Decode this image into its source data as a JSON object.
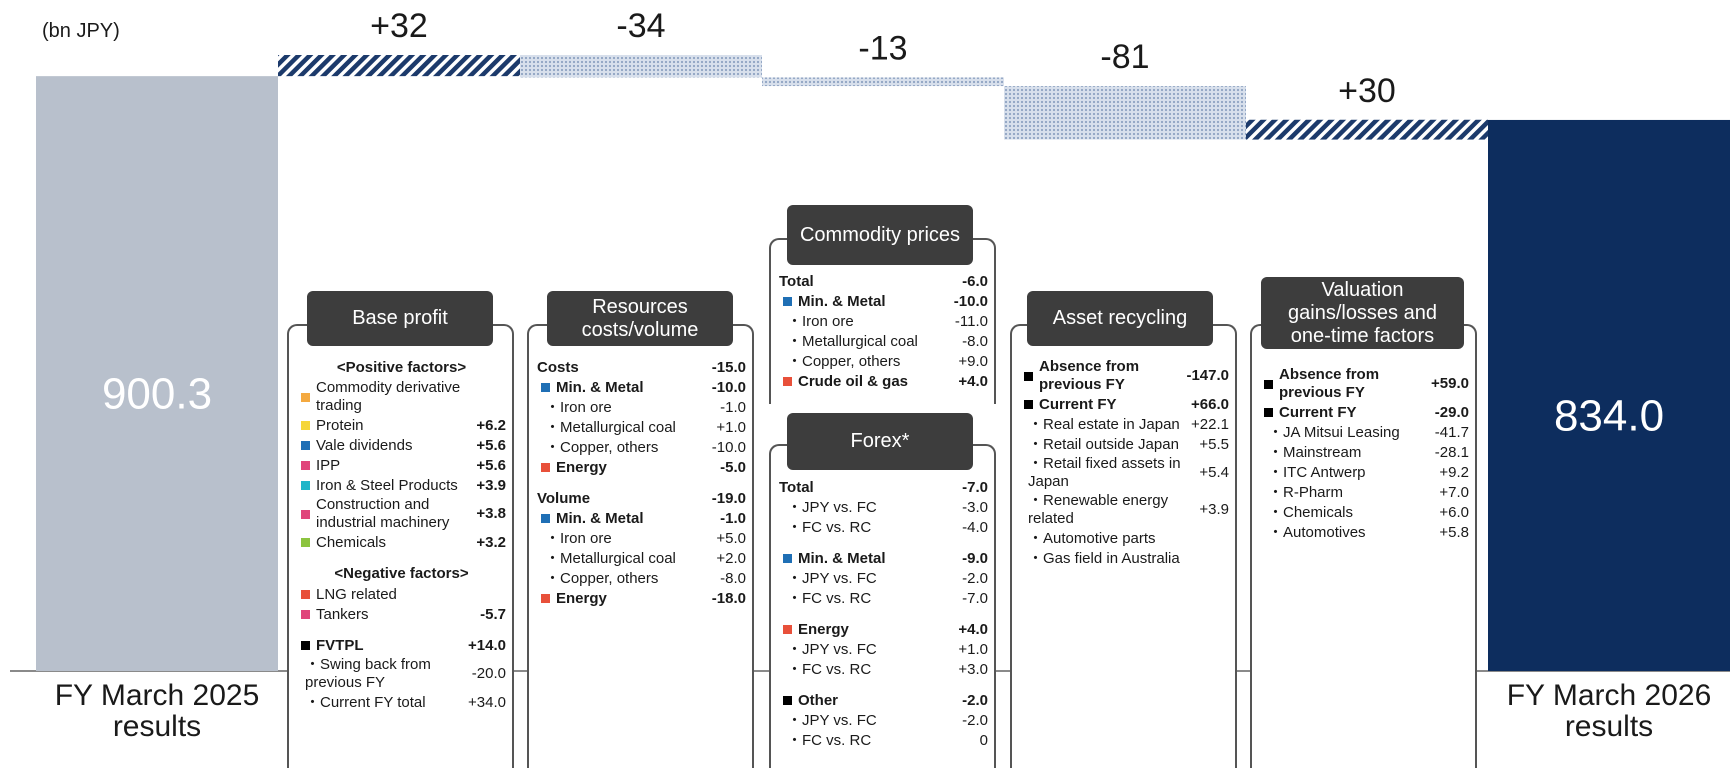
{
  "chart_data": {
    "type": "waterfall",
    "unit": "(bn JPY)",
    "categories": [
      "FY March 2025 results",
      null,
      null,
      null,
      null,
      null,
      "FY March 2026 results"
    ],
    "values": [
      900.3,
      32,
      -34,
      -13,
      -81,
      30,
      834.0
    ],
    "value_labels": [
      "900.3",
      "+32",
      "-34",
      "-13",
      "-81",
      "+30",
      "834.0"
    ],
    "measures": [
      "absolute",
      "relative",
      "relative",
      "relative",
      "relative",
      "relative",
      "absolute"
    ],
    "colors": [
      "#b8c0cc",
      "#1c3a6b",
      "#8fa3c2",
      "#8fa3c2",
      "#8fa3c2",
      "#1c3a6b",
      "#0d2d5e"
    ],
    "fills": [
      "solid",
      "stripes",
      "dots",
      "dots",
      "dots",
      "stripes",
      "solid"
    ]
  },
  "panels": [
    {
      "title": "Base profit",
      "groups": [
        {
          "title": "<Positive factors>",
          "rows": [
            {
              "label": "Commodity derivative trading",
              "bullet": "#f4a940"
            },
            {
              "label": "Protein",
              "value": "+6.2",
              "bullet": "#f5d63a"
            },
            {
              "label": "Vale dividends",
              "value": "+5.6",
              "bullet": "#1f6fb5"
            },
            {
              "label": "IPP",
              "value": "+5.6",
              "bullet": "#e0457b"
            },
            {
              "label": "Iron & Steel Products",
              "value": "+3.9",
              "bullet": "#1fb5c8"
            },
            {
              "label": "Construction and industrial machinery",
              "value": "+3.8",
              "bullet": "#e0457b"
            },
            {
              "label": "Chemicals",
              "value": "+3.2",
              "bullet": "#8cc43f"
            }
          ]
        },
        {
          "title": "<Negative factors>",
          "rows": [
            {
              "label": "LNG related",
              "bullet": "#e8503a"
            },
            {
              "label": "Tankers",
              "value": "-5.7",
              "bullet": "#e0457b"
            }
          ]
        },
        {
          "rows": [
            {
              "label": "FVTPL",
              "value": "+14.0",
              "bullet": "#000000",
              "bold": true
            },
            {
              "label": "・Swing back from previous FY",
              "value": "-20.0"
            },
            {
              "label": "・Current FY total",
              "value": "+34.0"
            }
          ]
        }
      ]
    },
    {
      "title": "Resources costs/volume",
      "groups": [
        {
          "rows": [
            {
              "label": "Costs",
              "value": "-15.0",
              "bold": true
            },
            {
              "label": "Min. & Metal",
              "value": "-10.0",
              "bullet": "#1f6fb5",
              "bold": true
            },
            {
              "label": "・Iron ore",
              "value": "-1.0"
            },
            {
              "label": "・Metallurgical coal",
              "value": "+1.0"
            },
            {
              "label": "・Copper, others",
              "value": "-10.0"
            },
            {
              "label": "Energy",
              "value": "-5.0",
              "bullet": "#e8503a",
              "bold": true
            }
          ]
        },
        {
          "rows": [
            {
              "label": "Volume",
              "value": "-19.0",
              "bold": true
            },
            {
              "label": "Min. & Metal",
              "value": "-1.0",
              "bullet": "#1f6fb5",
              "bold": true
            },
            {
              "label": "・Iron ore",
              "value": "+5.0"
            },
            {
              "label": "・Metallurgical coal",
              "value": "+2.0"
            },
            {
              "label": "・Copper, others",
              "value": "-8.0"
            },
            {
              "label": "Energy",
              "value": "-18.0",
              "bullet": "#e8503a",
              "bold": true
            }
          ]
        }
      ]
    },
    {
      "title": "Commodity prices",
      "groups": [
        {
          "rows": [
            {
              "label": "Total",
              "value": "-6.0",
              "bold": true
            },
            {
              "label": "Min. & Metal",
              "value": "-10.0",
              "bullet": "#1f6fb5",
              "bold": true
            },
            {
              "label": "・Iron ore",
              "value": "-11.0"
            },
            {
              "label": "・Metallurgical coal",
              "value": "-8.0"
            },
            {
              "label": "・Copper, others",
              "value": "+9.0"
            },
            {
              "label": "Crude oil & gas",
              "value": "+4.0",
              "bullet": "#e8503a",
              "bold": true
            }
          ]
        }
      ]
    },
    {
      "title": "Forex*",
      "groups": [
        {
          "rows": [
            {
              "label": "Total",
              "value": "-7.0",
              "bold": true
            },
            {
              "label": "・JPY vs. FC",
              "value": "-3.0"
            },
            {
              "label": "・FC vs. RC",
              "value": "-4.0"
            }
          ]
        },
        {
          "rows": [
            {
              "label": "Min. & Metal",
              "value": "-9.0",
              "bullet": "#1f6fb5",
              "bold": true
            },
            {
              "label": "・JPY vs. FC",
              "value": "-2.0"
            },
            {
              "label": "・FC vs. RC",
              "value": "-7.0"
            }
          ]
        },
        {
          "rows": [
            {
              "label": "Energy",
              "value": "+4.0",
              "bullet": "#e8503a",
              "bold": true
            },
            {
              "label": "・JPY vs. FC",
              "value": "+1.0"
            },
            {
              "label": "・FC vs. RC",
              "value": "+3.0"
            }
          ]
        },
        {
          "rows": [
            {
              "label": "Other",
              "value": "-2.0",
              "bullet": "#000000",
              "bold": true
            },
            {
              "label": "・JPY vs. FC",
              "value": "-2.0"
            },
            {
              "label": "・FC vs. RC",
              "value": "0"
            }
          ]
        }
      ]
    },
    {
      "title": "Asset recycling",
      "groups": [
        {
          "rows": [
            {
              "label": "Absence from previous FY",
              "value": "-147.0",
              "bullet": "#000000",
              "bold": true
            },
            {
              "label": "Current FY",
              "value": "+66.0",
              "bullet": "#000000",
              "bold": true
            },
            {
              "label": "・Real estate in Japan",
              "value": "+22.1"
            },
            {
              "label": "・Retail outside Japan",
              "value": "+5.5"
            },
            {
              "label": "・Retail fixed assets in Japan",
              "value": "+5.4"
            },
            {
              "label": "・Renewable energy related",
              "value": "+3.9"
            },
            {
              "label": "・Automotive parts"
            },
            {
              "label": "・Gas field in Australia"
            }
          ]
        }
      ]
    },
    {
      "title": "Valuation gains/losses and one-time factors",
      "groups": [
        {
          "rows": [
            {
              "label": "Absence from previous FY",
              "value": "+59.0",
              "bullet": "#000000",
              "bold": true
            },
            {
              "label": "Current FY",
              "value": "-29.0",
              "bullet": "#000000",
              "bold": true
            },
            {
              "label": "・JA Mitsui Leasing",
              "value": "-41.7"
            },
            {
              "label": "・Mainstream",
              "value": "-28.1"
            },
            {
              "label": "・ITC Antwerp",
              "value": "+9.2"
            },
            {
              "label": "・R-Pharm",
              "value": "+7.0"
            },
            {
              "label": "・Chemicals",
              "value": "+6.0"
            },
            {
              "label": "・Automotives",
              "value": "+5.8"
            }
          ]
        }
      ]
    }
  ]
}
